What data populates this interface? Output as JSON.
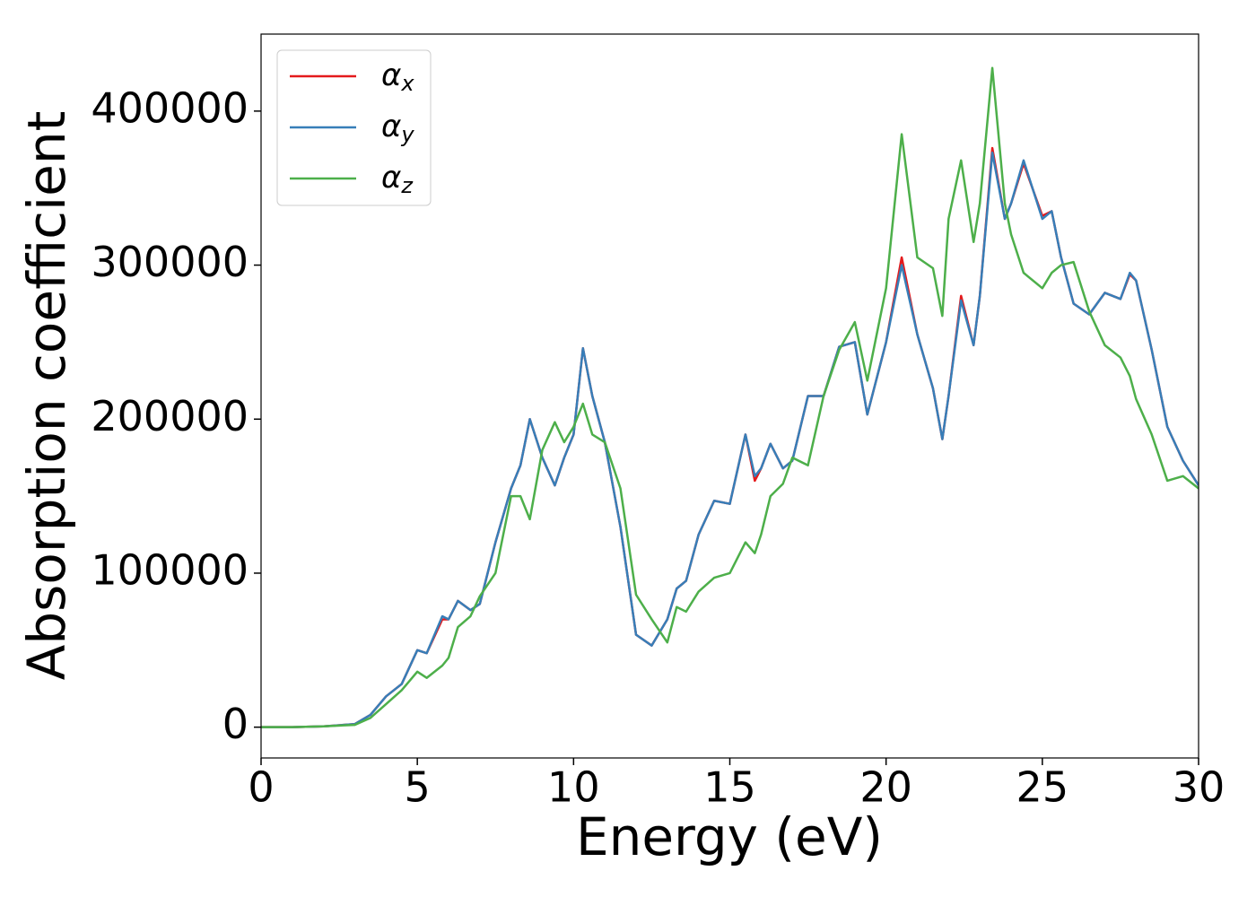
{
  "chart_data": {
    "type": "line",
    "xlabel": "Energy (eV)",
    "ylabel": "Absorption coefficient",
    "x": [
      0,
      1,
      2,
      3,
      3.5,
      4,
      4.5,
      5,
      5.3,
      5.8,
      6,
      6.3,
      6.7,
      7,
      7.5,
      8,
      8.3,
      8.6,
      9,
      9.4,
      9.7,
      10,
      10.3,
      10.6,
      11,
      11.5,
      12,
      12.5,
      13,
      13.3,
      13.6,
      14,
      14.5,
      15,
      15.5,
      15.8,
      16,
      16.3,
      16.7,
      17,
      17.5,
      18,
      18.5,
      19,
      19.4,
      20,
      20.5,
      21,
      21.5,
      21.8,
      22,
      22.4,
      22.8,
      23,
      23.4,
      23.8,
      24,
      24.4,
      25,
      25.3,
      25.6,
      26,
      26.5,
      27,
      27.5,
      27.8,
      28,
      28.5,
      29,
      29.5,
      30
    ],
    "series": [
      {
        "name": "αx",
        "color": "#e41a1c",
        "values": [
          0,
          0,
          500,
          2000,
          8000,
          20000,
          28000,
          50000,
          48000,
          70000,
          70000,
          82000,
          76000,
          80000,
          120000,
          155000,
          170000,
          200000,
          175000,
          157000,
          175000,
          190000,
          246000,
          215000,
          185000,
          130000,
          60000,
          53000,
          70000,
          90000,
          95000,
          125000,
          147000,
          145000,
          190000,
          160000,
          168000,
          184000,
          168000,
          173000,
          215000,
          215000,
          247000,
          250000,
          203000,
          250000,
          305000,
          255000,
          220000,
          187000,
          215000,
          280000,
          248000,
          280000,
          376000,
          330000,
          340000,
          366000,
          332000,
          335000,
          305000,
          275000,
          268000,
          282000,
          278000,
          294000,
          290000,
          245000,
          195000,
          173000,
          157000
        ]
      },
      {
        "name": "αy",
        "color": "#377eb8",
        "values": [
          0,
          0,
          500,
          2000,
          8000,
          20000,
          28000,
          50000,
          48000,
          72000,
          70000,
          82000,
          76000,
          80000,
          120000,
          155000,
          170000,
          200000,
          175000,
          157000,
          175000,
          190000,
          246000,
          215000,
          185000,
          130000,
          60000,
          53000,
          70000,
          90000,
          95000,
          125000,
          147000,
          145000,
          190000,
          163000,
          168000,
          184000,
          168000,
          173000,
          215000,
          215000,
          247000,
          250000,
          203000,
          250000,
          300000,
          255000,
          220000,
          187000,
          215000,
          277000,
          248000,
          280000,
          373000,
          330000,
          340000,
          368000,
          330000,
          335000,
          305000,
          275000,
          268000,
          282000,
          278000,
          295000,
          290000,
          245000,
          195000,
          173000,
          157000
        ]
      },
      {
        "name": "αz",
        "color": "#4daf4a",
        "values": [
          0,
          0,
          500,
          1500,
          6000,
          15000,
          24000,
          36000,
          32000,
          40000,
          45000,
          65000,
          72000,
          85000,
          100000,
          150000,
          150000,
          135000,
          180000,
          198000,
          185000,
          195000,
          210000,
          190000,
          185000,
          155000,
          86000,
          70000,
          55000,
          78000,
          75000,
          88000,
          97000,
          100000,
          120000,
          113000,
          125000,
          150000,
          158000,
          175000,
          170000,
          215000,
          245000,
          263000,
          225000,
          285000,
          385000,
          305000,
          298000,
          267000,
          330000,
          368000,
          315000,
          340000,
          428000,
          340000,
          320000,
          295000,
          285000,
          295000,
          300000,
          302000,
          270000,
          248000,
          240000,
          228000,
          213000,
          190000,
          160000,
          163000,
          155000
        ]
      }
    ],
    "xlim": [
      0,
      30
    ],
    "xticks": [
      0,
      5,
      10,
      15,
      20,
      25,
      30
    ],
    "ylim": [
      -20000,
      450000
    ],
    "yticks": [
      0,
      100000,
      200000,
      300000,
      400000
    ],
    "legend": "upper left",
    "grid": false
  }
}
